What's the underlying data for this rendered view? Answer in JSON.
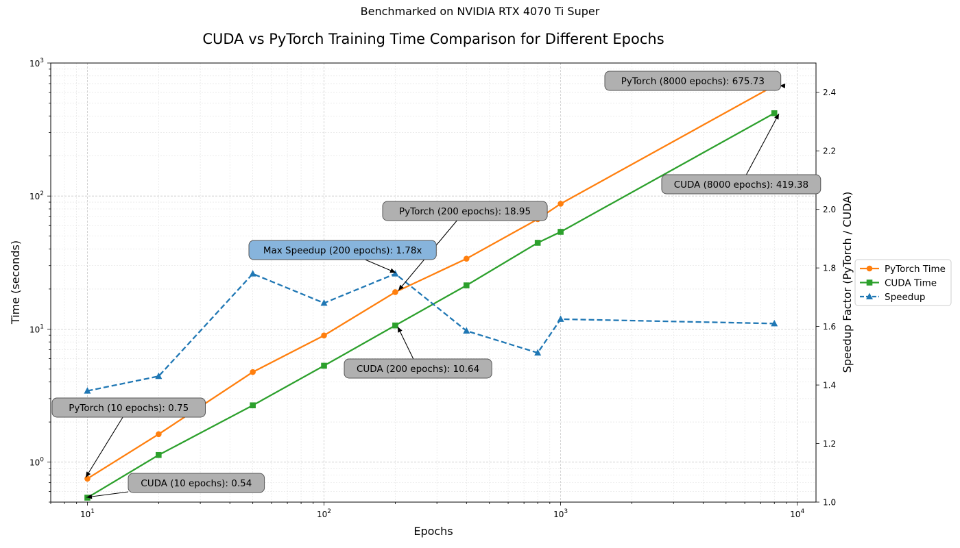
{
  "chart_data": {
    "type": "line",
    "suptitle": "Benchmarked on NVIDIA RTX 4070 Ti Super",
    "title": "CUDA vs PyTorch Training Time Comparison for Different Epochs",
    "xlabel": "Epochs",
    "ylabel": "Time (seconds)",
    "y2label": "Speedup Factor (PyTorch / CUDA)",
    "xscale": "log",
    "yscale": "log",
    "xlim": [
      7,
      12000
    ],
    "ylim": [
      0.5,
      1000
    ],
    "y2lim": [
      1.0,
      2.5
    ],
    "grid": true,
    "legend_position": "right-outside",
    "x_ticks": [
      {
        "label": "10",
        "exp": "1"
      },
      {
        "label": "10",
        "exp": "2"
      },
      {
        "label": "10",
        "exp": "3"
      },
      {
        "label": "10",
        "exp": "4"
      }
    ],
    "y_ticks": [
      {
        "label": "10",
        "exp": "0"
      },
      {
        "label": "10",
        "exp": "1"
      },
      {
        "label": "10",
        "exp": "2"
      },
      {
        "label": "10",
        "exp": "3"
      }
    ],
    "y2_ticks": [
      "1.0",
      "1.2",
      "1.4",
      "1.6",
      "1.8",
      "2.0",
      "2.2",
      "2.4"
    ],
    "x": [
      10,
      20,
      50,
      100,
      200,
      400,
      800,
      1000,
      8000
    ],
    "series": [
      {
        "name": "PyTorch Time",
        "axis": "left",
        "color": "#ff7f0e",
        "marker": "circle",
        "style": "solid",
        "values": [
          0.75,
          1.62,
          4.75,
          8.95,
          18.95,
          33.8,
          67.0,
          87.5,
          675.73
        ]
      },
      {
        "name": "CUDA Time",
        "axis": "left",
        "color": "#2ca02c",
        "marker": "square",
        "style": "solid",
        "values": [
          0.54,
          1.13,
          2.67,
          5.3,
          10.64,
          21.3,
          44.5,
          53.8,
          419.38
        ]
      },
      {
        "name": "Speedup",
        "axis": "right",
        "color": "#1f77b4",
        "marker": "triangle",
        "style": "dashed",
        "values": [
          1.38,
          1.43,
          1.78,
          1.68,
          1.78,
          1.585,
          1.51,
          1.625,
          1.61
        ]
      }
    ],
    "annotations": [
      {
        "text": "PyTorch (8000 epochs): 675.73",
        "x": 8000,
        "y": 675.73,
        "axis": "left",
        "color": "#b0b0b0"
      },
      {
        "text": "CUDA (8000 epochs): 419.38",
        "x": 8000,
        "y": 419.38,
        "axis": "left",
        "color": "#b0b0b0"
      },
      {
        "text": "PyTorch (200 epochs): 18.95",
        "x": 200,
        "y": 18.95,
        "axis": "left",
        "color": "#b0b0b0"
      },
      {
        "text": "Max Speedup (200 epochs): 1.78x",
        "x": 200,
        "y": 1.78,
        "axis": "right",
        "color": "#87b4dc"
      },
      {
        "text": "CUDA (200 epochs): 10.64",
        "x": 200,
        "y": 10.64,
        "axis": "left",
        "color": "#b0b0b0"
      },
      {
        "text": "PyTorch (10 epochs): 0.75",
        "x": 10,
        "y": 0.75,
        "axis": "left",
        "color": "#b0b0b0"
      },
      {
        "text": "CUDA (10 epochs): 0.54",
        "x": 10,
        "y": 0.54,
        "axis": "left",
        "color": "#b0b0b0"
      }
    ]
  }
}
